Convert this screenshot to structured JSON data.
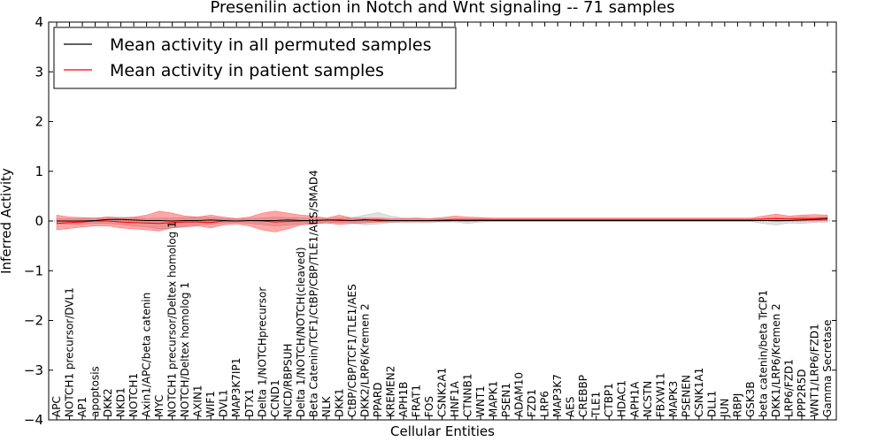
{
  "chart_data": {
    "type": "line",
    "title": "Presenilin action in Notch and Wnt signaling -- 71 samples",
    "xlabel": "Cellular Entities",
    "ylabel": "Inferred Activity",
    "ylim": [
      -4,
      4
    ],
    "yticks": [
      "−4",
      "−3",
      "−2",
      "−1",
      "0",
      "1",
      "2",
      "3",
      "4"
    ],
    "ytick_values": [
      -4,
      -3,
      -2,
      -1,
      0,
      1,
      2,
      3,
      4
    ],
    "legend_position": "top-left",
    "categories": [
      "APC",
      "NOTCH1 precursor/DVL1",
      "AP1",
      "apoptosis",
      "DKK2",
      "NKD1",
      "NOTCH1",
      "Axin1/APC/beta catenin",
      "MYC",
      "NOTCH1 precursor/Deltex homolog 1",
      "NOTCH/Deltex homolog 1",
      "AXIN1",
      "WIF1",
      "DVL1",
      "MAP3K7IP1",
      "DTX1",
      "Delta 1/NOTCHprecursor",
      "CCND1",
      "NICD/RBPSUH",
      "Delta 1/NOTCH/NOTCH(cleaved)",
      "Beta Catenin/TCF1/CtBP/CBP/TLE1/AES/SMAD4",
      "NLK",
      "DKK1",
      "CtBP/CBP/TCF1/TLE1/AES",
      "DKK2/LRP6/Kremen 2",
      "PPARD",
      "KREMEN2",
      "APH1B",
      "FRAT1",
      "FOS",
      "CSNK2A1",
      "HNF1A",
      "CTNNB1",
      "WNT1",
      "MAPK1",
      "PSEN1",
      "ADAM10",
      "FZD1",
      "LRP6",
      "MAP3K7",
      "AES",
      "CREBBP",
      "TLE1",
      "CTBP1",
      "HDAC1",
      "APH1A",
      "NCSTN",
      "FBXW11",
      "MAPK3",
      "PSENEN",
      "CSNK1A1",
      "DLL1",
      "JUN",
      "RBPJ",
      "GSK3B",
      "beta catenin/beta TrCP1",
      "DKK1/LRP6/Kremen 2",
      "LRP6/FZD1",
      "PPP2R5D",
      "WNT1/LRP6/FZD1",
      "Gamma Secretase"
    ],
    "series": [
      {
        "name": "Mean activity in all permuted samples",
        "color": "#000000",
        "values": [
          0,
          0,
          0,
          0.01,
          0.03,
          0.03,
          0.02,
          0.01,
          0.01,
          0,
          0.01,
          0.01,
          0.02,
          0.01,
          0,
          0.01,
          0.01,
          0.01,
          0.02,
          0.01,
          0.01,
          0.02,
          0.02,
          0.01,
          0.02,
          0.02,
          0.01,
          0.01,
          0.01,
          0.01,
          0.01,
          0.01,
          0.01,
          0.01,
          0.01,
          0.01,
          0.01,
          0.01,
          0.01,
          0.01,
          0.01,
          0.01,
          0.01,
          0.01,
          0.01,
          0.01,
          0.01,
          0.01,
          0.01,
          0.01,
          0.01,
          0.01,
          0.01,
          0.01,
          0.01,
          0.01,
          0.01,
          0.01,
          0.02,
          0.03,
          0.04
        ],
        "band_lower": [
          -0.05,
          -0.07,
          -0.06,
          -0.05,
          -0.05,
          -0.07,
          -0.1,
          -0.12,
          -0.16,
          -0.14,
          -0.1,
          -0.08,
          -0.06,
          -0.04,
          -0.03,
          -0.05,
          -0.07,
          -0.1,
          -0.08,
          -0.06,
          -0.05,
          -0.04,
          -0.03,
          -0.04,
          -0.08,
          -0.06,
          -0.03,
          -0.02,
          -0.02,
          -0.02,
          -0.02,
          -0.02,
          -0.05,
          -0.02,
          -0.01,
          -0.01,
          -0.01,
          -0.01,
          -0.01,
          -0.01,
          -0.01,
          -0.01,
          -0.01,
          -0.01,
          -0.01,
          -0.01,
          -0.01,
          -0.01,
          -0.01,
          -0.01,
          -0.01,
          -0.01,
          -0.01,
          -0.01,
          -0.01,
          -0.05,
          -0.08,
          -0.04,
          -0.05,
          -0.03,
          -0.02
        ],
        "band_upper": [
          0.04,
          0.05,
          0.05,
          0.06,
          0.08,
          0.08,
          0.07,
          0.05,
          0.06,
          0.06,
          0.07,
          0.08,
          0.07,
          0.05,
          0.04,
          0.05,
          0.06,
          0.08,
          0.07,
          0.06,
          0.06,
          0.05,
          0.06,
          0.07,
          0.12,
          0.17,
          0.1,
          0.06,
          0.05,
          0.04,
          0.04,
          0.04,
          0.04,
          0.04,
          0.03,
          0.03,
          0.03,
          0.03,
          0.03,
          0.03,
          0.03,
          0.03,
          0.03,
          0.03,
          0.03,
          0.03,
          0.03,
          0.03,
          0.03,
          0.03,
          0.03,
          0.03,
          0.03,
          0.03,
          0.03,
          0.05,
          0.07,
          0.06,
          0.08,
          0.07,
          0.08
        ]
      },
      {
        "name": "Mean activity in patient samples",
        "color": "#ff0000",
        "values": [
          -0.05,
          -0.03,
          -0.02,
          0,
          0,
          -0.02,
          -0.03,
          -0.04,
          -0.05,
          -0.03,
          -0.02,
          -0.02,
          -0.03,
          0,
          0,
          0.01,
          0,
          -0.02,
          -0.01,
          0,
          0.01,
          0.02,
          0.01,
          0.01,
          0.03,
          0,
          0.01,
          0.01,
          0.01,
          0.01,
          0.02,
          0.03,
          0.03,
          0.03,
          0.03,
          0.03,
          0.03,
          0.03,
          0.03,
          0.03,
          0.03,
          0.03,
          0.03,
          0.03,
          0.03,
          0.03,
          0.03,
          0.03,
          0.03,
          0.03,
          0.03,
          0.03,
          0.03,
          0.03,
          0.03,
          0.04,
          0.05,
          0.04,
          0.05,
          0.05,
          0.06
        ],
        "band_lower": [
          -0.18,
          -0.15,
          -0.12,
          -0.1,
          -0.1,
          -0.14,
          -0.16,
          -0.18,
          -0.2,
          -0.14,
          -0.12,
          -0.1,
          -0.14,
          -0.08,
          -0.06,
          -0.1,
          -0.18,
          -0.22,
          -0.16,
          -0.08,
          -0.06,
          -0.04,
          -0.07,
          -0.05,
          -0.04,
          -0.02,
          -0.02,
          -0.02,
          -0.02,
          -0.02,
          -0.01,
          0,
          -0.01,
          0,
          0,
          0,
          0,
          0,
          0,
          0,
          0,
          0,
          0,
          0,
          0,
          0,
          0,
          0,
          0,
          0,
          0,
          0,
          0,
          0,
          0,
          0.01,
          -0.01,
          0,
          0,
          0,
          0.01
        ],
        "band_upper": [
          0.12,
          0.08,
          0.07,
          0.06,
          0.08,
          0.06,
          0.08,
          0.12,
          0.2,
          0.16,
          0.1,
          0.08,
          0.12,
          0.08,
          0.05,
          0.08,
          0.16,
          0.2,
          0.16,
          0.12,
          0.1,
          0.06,
          0.12,
          0.06,
          0.06,
          0.06,
          0.05,
          0.05,
          0.06,
          0.05,
          0.07,
          0.1,
          0.08,
          0.07,
          0.06,
          0.06,
          0.06,
          0.06,
          0.06,
          0.06,
          0.06,
          0.06,
          0.06,
          0.06,
          0.06,
          0.06,
          0.06,
          0.06,
          0.06,
          0.06,
          0.06,
          0.06,
          0.06,
          0.06,
          0.06,
          0.1,
          0.14,
          0.1,
          0.12,
          0.13,
          0.12
        ]
      }
    ]
  }
}
